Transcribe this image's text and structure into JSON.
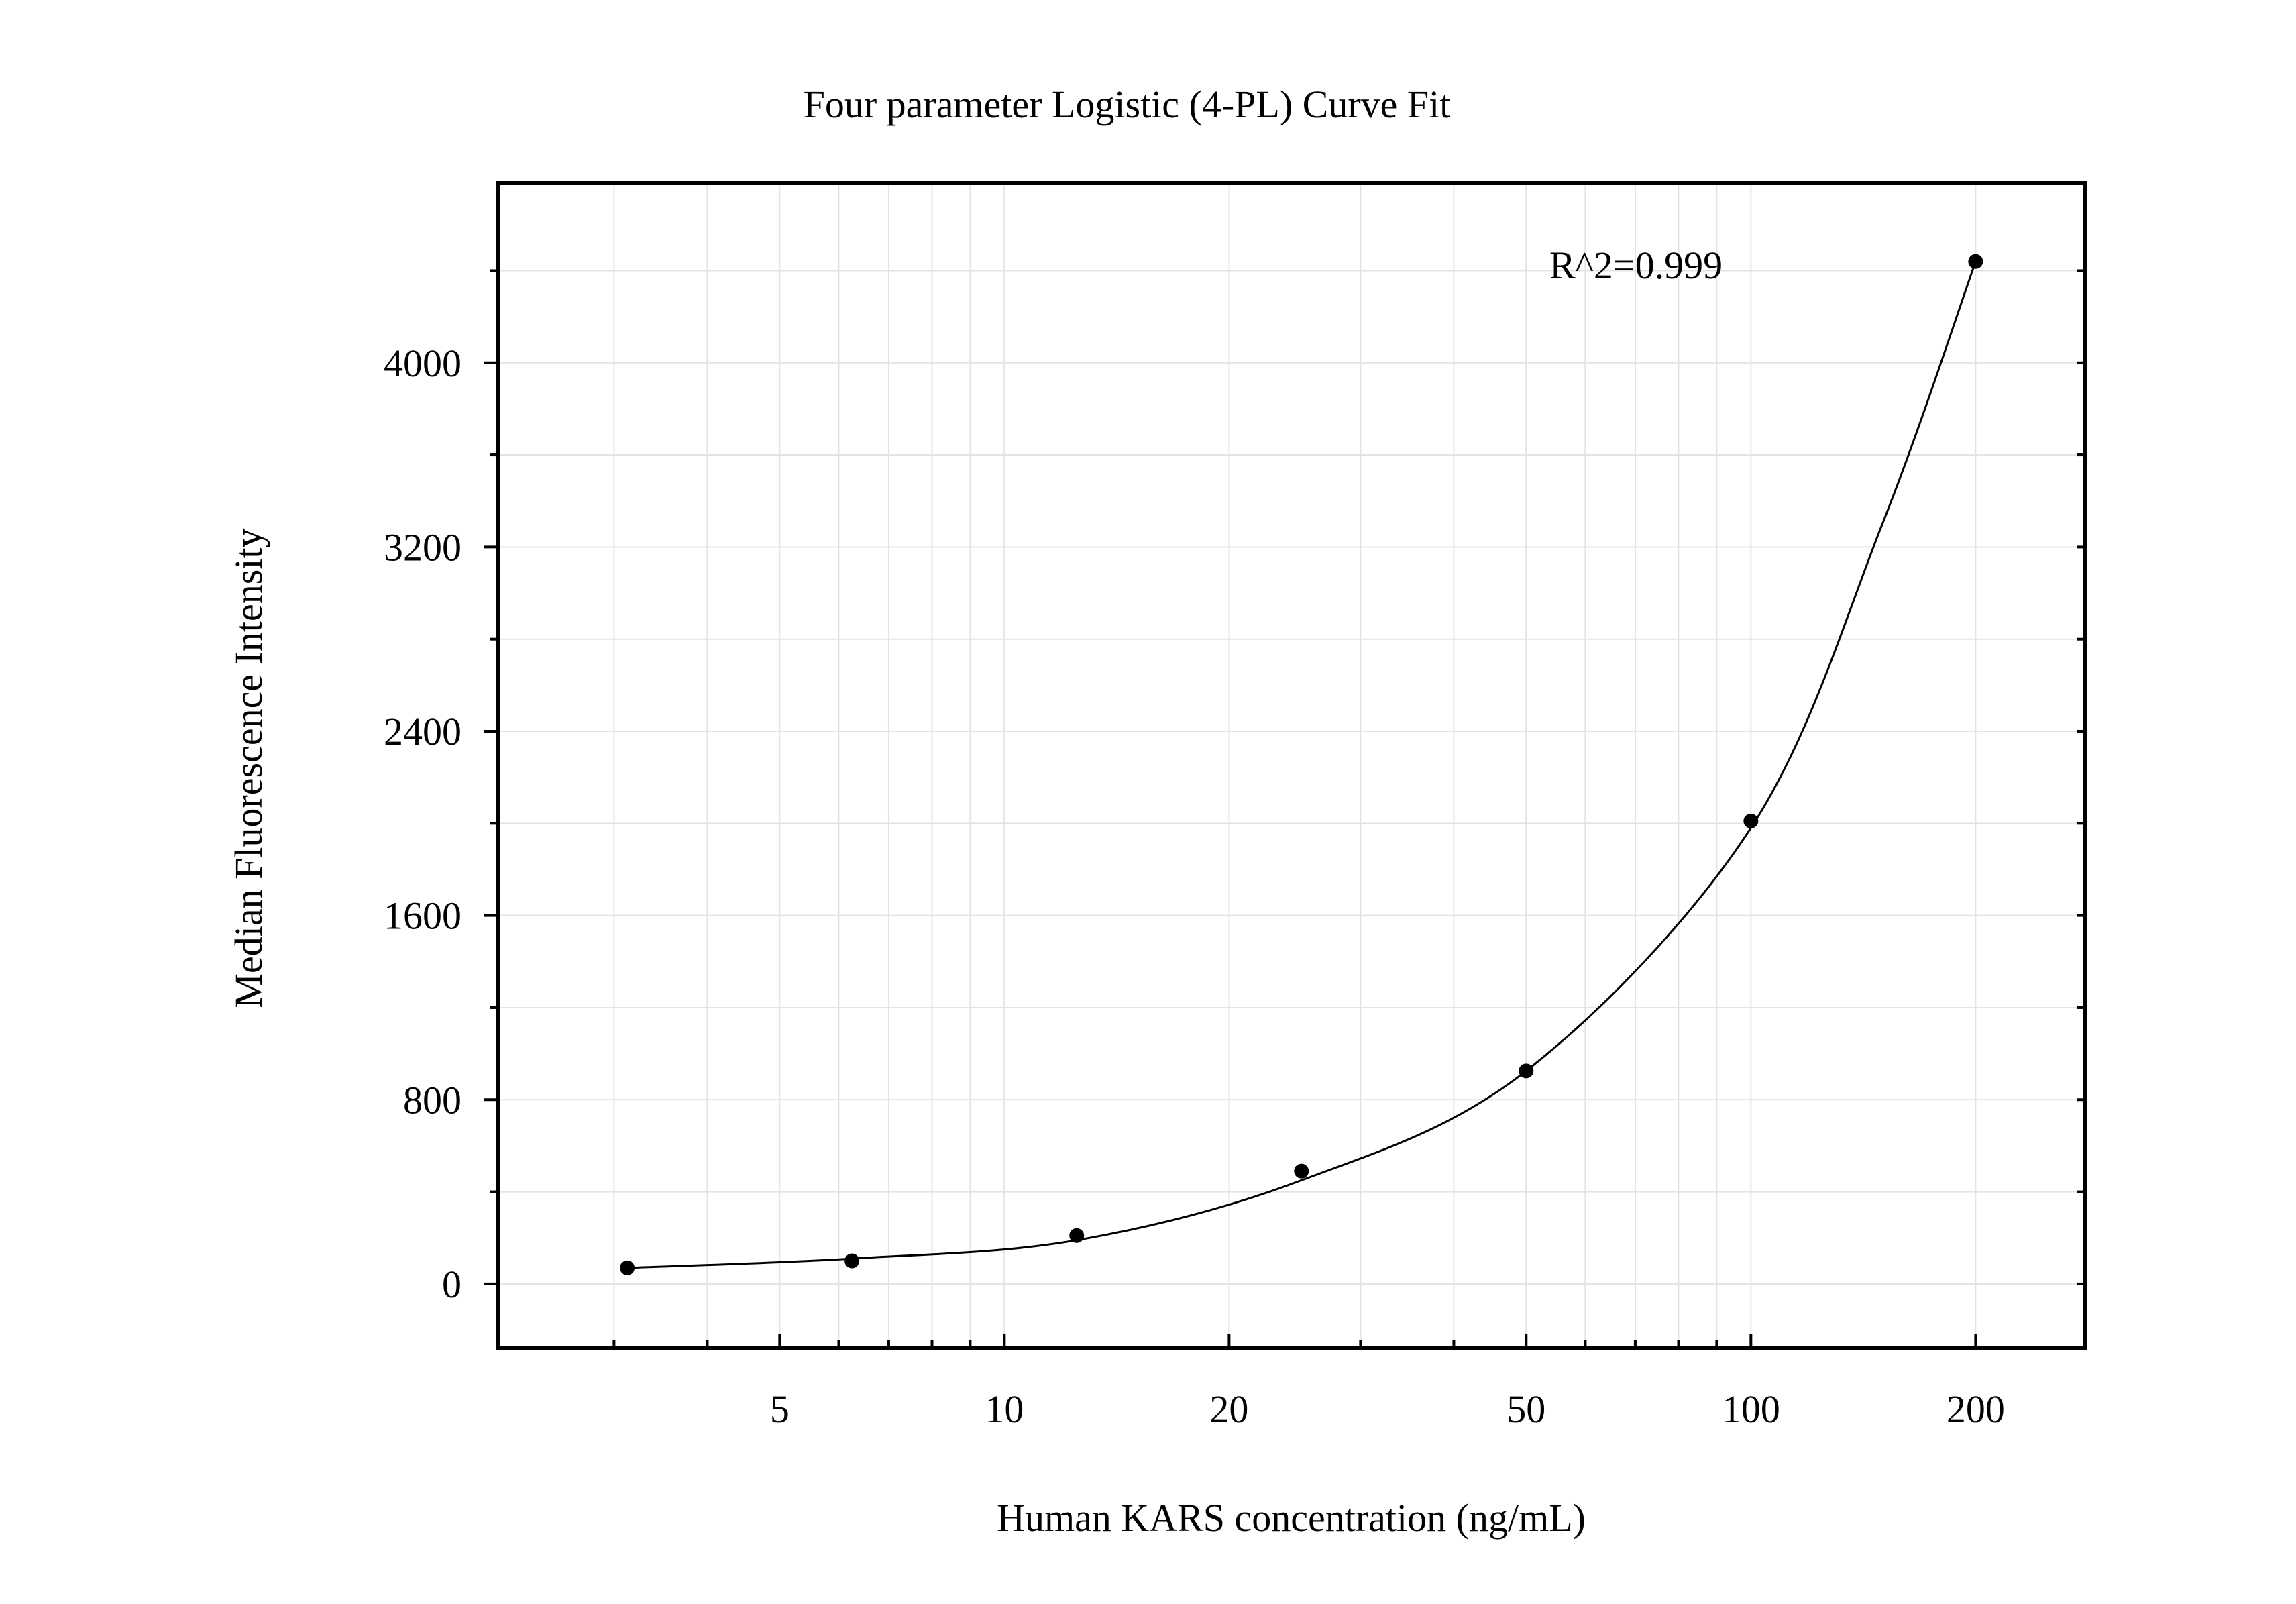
{
  "chart_data": {
    "type": "scatter",
    "title": "Four parameter Logistic (4-PL) Curve Fit",
    "xlabel": "Human KARS concentration (ng/mL)",
    "ylabel": "Median Fluorescence Intensity",
    "x_scale": "log",
    "xlim": [
      2.1,
      280
    ],
    "ylim": [
      -280,
      4780
    ],
    "x_ticks": [
      5,
      10,
      20,
      50,
      100,
      200
    ],
    "x_tick_labels": [
      "5",
      "10",
      "20",
      "50",
      "100",
      "200"
    ],
    "y_ticks": [
      0,
      800,
      1600,
      2400,
      3200,
      4000
    ],
    "y_tick_labels": [
      "0",
      "800",
      "1600",
      "2400",
      "3200",
      "4000"
    ],
    "grid": true,
    "annotation": "R^2=0.999",
    "series": [
      {
        "kind": "points",
        "x": [
          3.125,
          6.25,
          12.5,
          25,
          50,
          100,
          200
        ],
        "y": [
          70,
          100,
          210,
          490,
          925,
          2010,
          4440
        ]
      },
      {
        "kind": "fit-curve",
        "x": [
          3.125,
          6.25,
          12.5,
          25,
          50,
          100,
          150,
          200
        ],
        "y": [
          70,
          110,
          190,
          450,
          925,
          1980,
          3300,
          4440
        ]
      }
    ],
    "colors": {
      "points": "#000000",
      "curve": "#000000",
      "grid": "#e3e3e3",
      "frame": "#000000"
    }
  }
}
